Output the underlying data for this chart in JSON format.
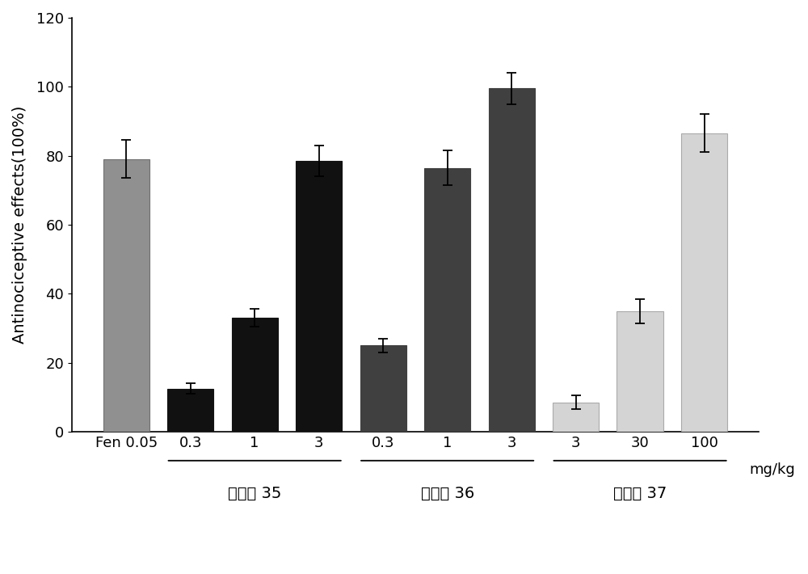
{
  "bars": [
    {
      "label": "Fen 0.05",
      "value": 79.0,
      "error": 5.5,
      "color": "#909090",
      "group": "fen"
    },
    {
      "label": "0.3",
      "value": 12.5,
      "error": 1.5,
      "color": "#111111",
      "group": "35"
    },
    {
      "label": "1",
      "value": 33.0,
      "error": 2.5,
      "color": "#111111",
      "group": "35"
    },
    {
      "label": "3",
      "value": 78.5,
      "error": 4.5,
      "color": "#111111",
      "group": "35"
    },
    {
      "label": "0.3",
      "value": 25.0,
      "error": 2.0,
      "color": "#404040",
      "group": "36"
    },
    {
      "label": "1",
      "value": 76.5,
      "error": 5.0,
      "color": "#404040",
      "group": "36"
    },
    {
      "label": "3",
      "value": 99.5,
      "error": 4.5,
      "color": "#404040",
      "group": "36"
    },
    {
      "label": "3",
      "value": 8.5,
      "error": 2.0,
      "color": "#d4d4d4",
      "group": "37"
    },
    {
      "label": "30",
      "value": 35.0,
      "error": 3.5,
      "color": "#d4d4d4",
      "group": "37"
    },
    {
      "label": "100",
      "value": 86.5,
      "error": 5.5,
      "color": "#d4d4d4",
      "group": "37"
    }
  ],
  "ylabel": "Antinociceptive effects(100%)",
  "ylim": [
    0,
    120
  ],
  "yticks": [
    0,
    20,
    40,
    60,
    80,
    100,
    120
  ],
  "groups": {
    "35": [
      1,
      3
    ],
    "36": [
      4,
      6
    ],
    "37": [
      7,
      9
    ]
  },
  "group_texts": {
    "35": "化合物 35",
    "36": "化合物 36",
    "37": "化合物 37"
  },
  "unit_label": "mg/kg",
  "background_color": "#ffffff",
  "bar_width": 0.72,
  "axis_fontsize": 14,
  "tick_fontsize": 13,
  "group_label_fontsize": 14
}
